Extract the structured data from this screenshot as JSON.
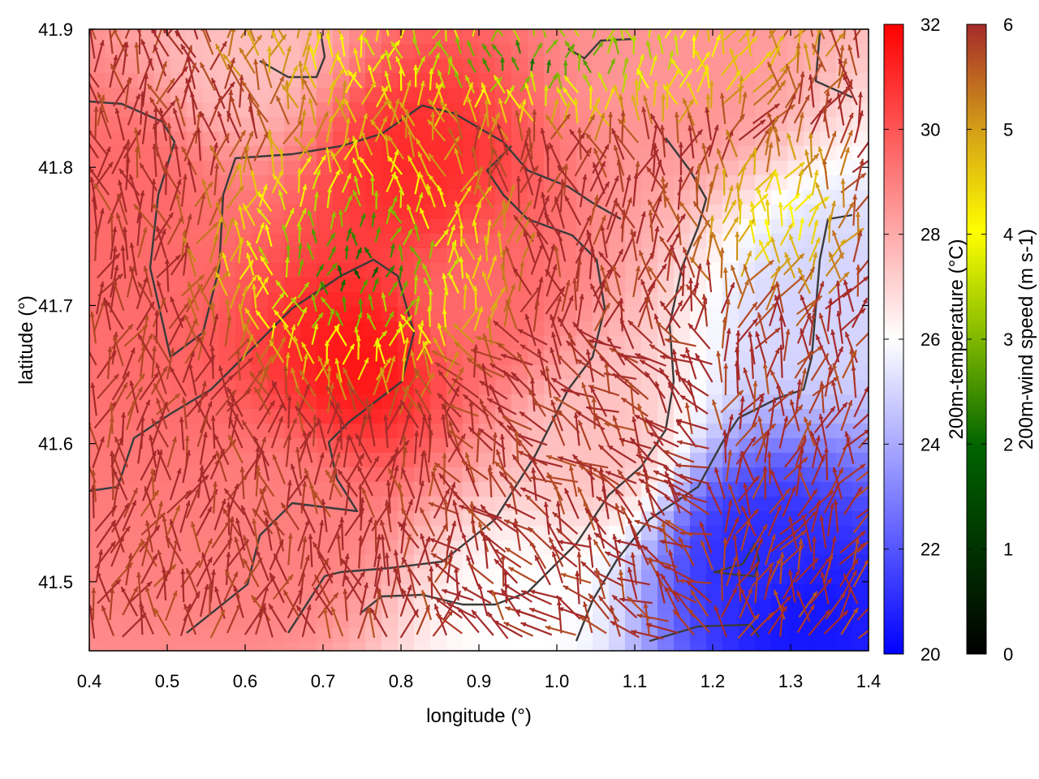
{
  "chart_data": {
    "type": "heatmap",
    "title": "",
    "xlabel": "longitude (°)",
    "ylabel": "latitude (°)",
    "xlim": [
      0.4,
      1.4
    ],
    "ylim": [
      41.45,
      41.9
    ],
    "x_ticks": [
      "0.4",
      "0.5",
      "0.6",
      "0.7",
      "0.8",
      "0.9",
      "1.0",
      "1.1",
      "1.2",
      "1.3",
      "1.4"
    ],
    "y_ticks": [
      "41.5",
      "41.6",
      "41.7",
      "41.8",
      "41.9"
    ],
    "grid": false,
    "layers": [
      "temperature field (color map)",
      "wind vectors (arrows colored by speed)",
      "terrain contours (dark lines)"
    ],
    "colorbars": [
      {
        "name": "temperature",
        "label": "200m-temperature (°C)",
        "range": [
          20,
          32
        ],
        "ticks": [
          "20",
          "22",
          "24",
          "26",
          "28",
          "30",
          "32"
        ],
        "colors": [
          "#0000ff",
          "#ffffff",
          "#ff0000"
        ]
      },
      {
        "name": "wind",
        "label": "200m-wind speed (m s-1)",
        "range": [
          0,
          6
        ],
        "ticks": [
          "0",
          "1",
          "2",
          "3",
          "4",
          "5",
          "6"
        ],
        "colors": [
          "#000000",
          "#006400",
          "#7fb800",
          "#ffff00",
          "#d4a017",
          "#a52a2a"
        ]
      }
    ],
    "temperature_regions": [
      {
        "lon": 0.75,
        "lat": 41.66,
        "value": 31.5
      },
      {
        "lon": 0.82,
        "lat": 41.8,
        "value": 31.0
      },
      {
        "lon": 0.45,
        "lat": 41.78,
        "value": 29.5
      },
      {
        "lon": 0.65,
        "lat": 41.55,
        "value": 29.0
      },
      {
        "lon": 0.9,
        "lat": 41.7,
        "value": 29.5
      },
      {
        "lon": 1.05,
        "lat": 41.6,
        "value": 27.5
      },
      {
        "lon": 1.25,
        "lat": 41.52,
        "value": 21.0
      },
      {
        "lon": 1.32,
        "lat": 41.47,
        "value": 20.5
      },
      {
        "lon": 1.35,
        "lat": 41.7,
        "value": 25.0
      },
      {
        "lon": 1.15,
        "lat": 41.87,
        "value": 28.5
      },
      {
        "lon": 0.95,
        "lat": 41.48,
        "value": 26.0
      },
      {
        "lon": 0.6,
        "lat": 41.88,
        "value": 27.5
      }
    ]
  }
}
